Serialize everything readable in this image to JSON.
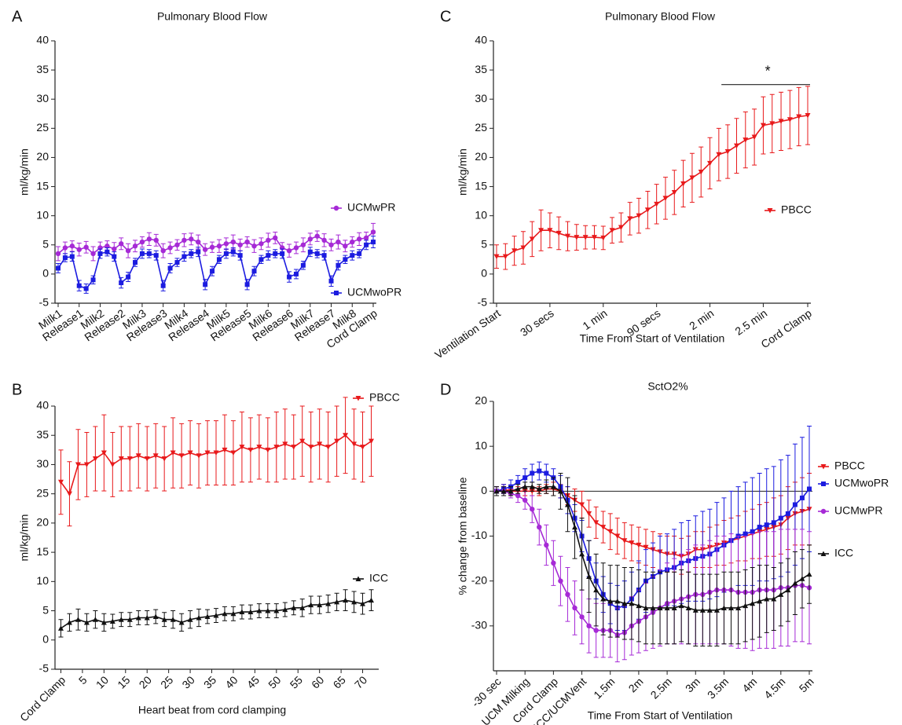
{
  "chart_data": [
    {
      "type": "line",
      "label": "A",
      "title": "Pulmonary Blood Flow",
      "ylabel": "ml/kg/min",
      "categories": [
        "Milk1",
        null,
        null,
        "Release1",
        null,
        null,
        "Milk2",
        null,
        null,
        "Release2",
        null,
        null,
        "Milk3",
        null,
        null,
        "Release3",
        null,
        null,
        "Milk4",
        null,
        null,
        "Release4",
        null,
        null,
        "Milk5",
        null,
        null,
        "Release5",
        null,
        null,
        "Milk6",
        null,
        null,
        "Release6",
        null,
        null,
        "Milk7",
        null,
        null,
        "Release7",
        null,
        null,
        "Milk8",
        null,
        null,
        "Cord Clamp"
      ],
      "ylim": [
        -5,
        40
      ],
      "yticks": [
        -5,
        0,
        5,
        10,
        15,
        20,
        25,
        30,
        35,
        40
      ],
      "series": [
        {
          "name": "UCMwPR",
          "color": "#a62ad6",
          "marker": "circle",
          "values": [
            3.5,
            4.5,
            4.8,
            4.2,
            4.6,
            3.5,
            4.5,
            4.8,
            4.3,
            5.2,
            4.0,
            4.8,
            5.5,
            6.0,
            5.8,
            4.0,
            4.5,
            5.0,
            5.8,
            6.0,
            5.5,
            4.2,
            4.6,
            4.8,
            5.2,
            5.5,
            5.0,
            5.5,
            4.8,
            5.2,
            5.8,
            6.2,
            4.5,
            4.0,
            4.5,
            5.0,
            6.0,
            6.5,
            5.8,
            5.0,
            5.5,
            4.8,
            5.5,
            6.0,
            6.2,
            7.2
          ],
          "errors": [
            1.2,
            1.0,
            0.9,
            1.1,
            1.0,
            1.2,
            1.0,
            0.9,
            1.1,
            1.0,
            1.2,
            1.0,
            0.9,
            1.1,
            1.0,
            1.2,
            1.0,
            0.9,
            1.1,
            1.0,
            1.2,
            1.0,
            0.9,
            1.1,
            1.0,
            1.2,
            1.0,
            0.9,
            1.1,
            1.0,
            1.2,
            1.0,
            0.9,
            1.1,
            1.0,
            1.2,
            1.0,
            0.9,
            1.1,
            1.0,
            1.2,
            1.0,
            0.9,
            1.1,
            1.0,
            1.5
          ]
        },
        {
          "name": "UCMwoPR",
          "color": "#1c1ce0",
          "marker": "square",
          "values": [
            1.0,
            2.8,
            3.0,
            -2.0,
            -2.5,
            -1.0,
            3.5,
            3.8,
            3.0,
            -1.5,
            -0.5,
            2.0,
            3.5,
            3.5,
            3.2,
            -2.0,
            1.0,
            2.0,
            3.0,
            3.5,
            3.8,
            -1.8,
            0.5,
            2.5,
            3.5,
            3.8,
            3.2,
            -1.8,
            0.5,
            2.5,
            3.2,
            3.5,
            3.5,
            -0.5,
            0,
            1.5,
            3.8,
            3.5,
            3.2,
            -1.2,
            1.5,
            2.5,
            3.2,
            3.5,
            5.0,
            5.5
          ],
          "errors": [
            0.8,
            0.7,
            0.8,
            0.9,
            0.8,
            0.7,
            0.8,
            0.7,
            0.8,
            0.9,
            0.8,
            0.7,
            0.8,
            0.7,
            0.8,
            0.9,
            0.8,
            0.7,
            0.8,
            0.7,
            0.8,
            0.9,
            0.8,
            0.7,
            0.8,
            0.7,
            0.8,
            0.9,
            0.8,
            0.7,
            0.8,
            0.7,
            0.8,
            0.9,
            0.8,
            0.7,
            0.8,
            0.7,
            0.8,
            0.9,
            0.8,
            0.7,
            0.8,
            0.7,
            0.8,
            1.0
          ]
        }
      ]
    },
    {
      "type": "line",
      "label": "B",
      "ylabel": "ml/kg/min",
      "xlabel": "Heart beat from cord clamping",
      "x": [
        0,
        2,
        4,
        6,
        8,
        10,
        12,
        14,
        16,
        18,
        20,
        22,
        24,
        26,
        28,
        30,
        32,
        34,
        36,
        38,
        40,
        42,
        44,
        46,
        48,
        50,
        52,
        54,
        56,
        58,
        60,
        62,
        64,
        66,
        68,
        70,
        72
      ],
      "xlim": [
        -1,
        73
      ],
      "xticks": [
        {
          "value": 0,
          "label": "Cord Clamp"
        },
        5,
        10,
        15,
        20,
        25,
        30,
        35,
        40,
        45,
        50,
        55,
        60,
        65,
        70
      ],
      "ylim": [
        -5,
        40
      ],
      "yticks": [
        -5,
        0,
        5,
        10,
        15,
        20,
        25,
        30,
        35,
        40
      ],
      "series": [
        {
          "name": "PBCC",
          "color": "#e8191b",
          "marker": "triangle-down",
          "values": [
            27,
            25,
            30,
            30,
            31,
            32,
            30,
            31,
            31,
            31.5,
            31,
            31.5,
            31,
            32,
            31.5,
            32,
            31.5,
            32,
            32,
            32.5,
            32,
            33,
            32.5,
            33,
            32.5,
            33,
            33.5,
            33,
            34,
            33,
            33.5,
            33,
            34,
            35,
            33.5,
            33,
            34
          ],
          "errors": [
            5.5,
            5.5,
            6,
            5.5,
            5.5,
            6.5,
            5.5,
            5.5,
            5.5,
            5.5,
            5.5,
            5.5,
            5.5,
            6,
            5.5,
            5.5,
            5.5,
            5.5,
            5.5,
            6,
            5.5,
            6,
            5.5,
            5.5,
            5.5,
            6,
            6,
            5.5,
            6,
            6,
            6,
            6,
            6,
            6.5,
            6,
            6,
            6
          ]
        },
        {
          "name": "ICC",
          "color": "#111111",
          "marker": "triangle-up",
          "values": [
            2,
            3,
            3.5,
            3,
            3.5,
            3,
            3.2,
            3.5,
            3.5,
            3.8,
            3.8,
            4,
            3.5,
            3.5,
            3,
            3.5,
            3.8,
            4,
            4.2,
            4.5,
            4.5,
            4.8,
            4.8,
            5,
            5,
            5,
            5.2,
            5.5,
            5.5,
            6,
            6,
            6.2,
            6.5,
            6.8,
            6.5,
            6.2,
            6.8
          ],
          "errors": [
            1.5,
            1.5,
            1.8,
            1.5,
            1.5,
            1.5,
            1.2,
            1.2,
            1.2,
            1.2,
            1.2,
            1.2,
            1.2,
            1.5,
            1.5,
            1.5,
            1.5,
            1.2,
            1.2,
            1.2,
            1.2,
            1.2,
            1.2,
            1.2,
            1.2,
            1.2,
            1.2,
            1.2,
            1.5,
            1.5,
            1.5,
            1.5,
            1.5,
            1.8,
            1.8,
            1.8,
            1.8
          ]
        }
      ]
    },
    {
      "type": "line",
      "label": "C",
      "title": "Pulmonary Blood Flow",
      "ylabel": "ml/kg/min",
      "xlabel": "Time From Start of Ventilation",
      "categories": [
        "Ventilation Start",
        null,
        null,
        null,
        null,
        null,
        "30 secs",
        null,
        null,
        null,
        null,
        null,
        "1 min",
        null,
        null,
        null,
        null,
        null,
        "90 secs",
        null,
        null,
        null,
        null,
        null,
        "2 min",
        null,
        null,
        null,
        null,
        null,
        "2.5 min",
        null,
        null,
        null,
        null,
        "Cord Clamp"
      ],
      "ylim": [
        -5,
        40
      ],
      "yticks": [
        -5,
        0,
        5,
        10,
        15,
        20,
        25,
        30,
        35,
        40
      ],
      "annotations": [
        {
          "text": "*",
          "x_from": 26,
          "x_to": 35,
          "y": 32.5
        }
      ],
      "series": [
        {
          "name": "PBCC",
          "color": "#e8191b",
          "marker": "triangle-down",
          "values": [
            3,
            3,
            4,
            4.5,
            6,
            7.5,
            7.5,
            7,
            6.5,
            6.3,
            6.3,
            6.3,
            6.2,
            7.5,
            8,
            9.5,
            10,
            11,
            12,
            13,
            14,
            15.5,
            16.5,
            17.5,
            19,
            20.5,
            21,
            22,
            23,
            23.5,
            25.5,
            25.8,
            26.2,
            26.5,
            27,
            27.2
          ],
          "errors": [
            2,
            2.2,
            2.5,
            2.8,
            3,
            3.5,
            3,
            2.8,
            2.5,
            2.2,
            2,
            2,
            2,
            2.2,
            2.5,
            2.8,
            3,
            3.2,
            3.4,
            3.6,
            3.8,
            4,
            4.2,
            4.3,
            4.4,
            4.5,
            4.6,
            4.7,
            4.8,
            4.8,
            4.9,
            5,
            5,
            5,
            5,
            5
          ]
        }
      ]
    },
    {
      "type": "line",
      "label": "D",
      "title": "SctO2%",
      "ylabel": "% change from baseline",
      "xlabel": "Time From Start of Ventilation",
      "categories": [
        "-30 sec",
        null,
        null,
        null,
        "UCM Milking",
        null,
        null,
        null,
        "Cord Clamp",
        null,
        null,
        null,
        "ICC/UCMVent",
        null,
        null,
        null,
        "1.5m",
        null,
        null,
        null,
        "2m",
        null,
        null,
        null,
        "2.5m",
        null,
        null,
        null,
        "3m",
        null,
        null,
        null,
        "3.5m",
        null,
        null,
        null,
        "4m",
        null,
        null,
        null,
        "4.5m",
        null,
        null,
        null,
        "5m"
      ],
      "ylim": [
        -40,
        20
      ],
      "yticks": [
        -30,
        -20,
        -10,
        0,
        10,
        20
      ],
      "zero_line": true,
      "series": [
        {
          "name": "PBCC",
          "color": "#e8191b",
          "marker": "triangle-down",
          "values": [
            0,
            0.5,
            0,
            0,
            0,
            0,
            0,
            0.5,
            0.5,
            0,
            -1,
            -2,
            -3,
            -5,
            -7,
            -8,
            -9,
            -10,
            -11,
            -11.5,
            -12,
            -12.5,
            -13,
            -13.5,
            -14,
            -14,
            -14.5,
            -14,
            -13,
            -13,
            -12.5,
            -12,
            -11.5,
            -11,
            -10.5,
            -10,
            -9.5,
            -9,
            -8.5,
            -8,
            -7.5,
            -6,
            -5,
            -4.5,
            -4
          ],
          "errors": [
            1,
            1,
            1,
            1,
            1,
            1,
            1,
            1,
            1.5,
            1.5,
            2,
            2.5,
            3,
            3,
            3.5,
            3.5,
            4,
            4,
            4,
            4,
            4,
            4,
            4,
            4,
            4,
            4,
            4,
            4,
            4,
            4,
            4.5,
            4.5,
            5,
            5,
            5,
            5.5,
            5.5,
            6,
            6,
            6.5,
            6.5,
            7,
            7,
            7.5,
            8
          ]
        },
        {
          "name": "UCMwoPR",
          "color": "#1c1ce0",
          "marker": "square",
          "values": [
            0,
            0.5,
            1,
            2,
            3,
            4,
            4.5,
            4,
            3,
            1,
            -2,
            -6,
            -10,
            -15,
            -20,
            -23,
            -25,
            -26,
            -25.5,
            -24,
            -22,
            -20,
            -19,
            -18,
            -17.5,
            -17,
            -16,
            -15.5,
            -15,
            -14.5,
            -14,
            -13,
            -12,
            -11,
            -10,
            -9.5,
            -9,
            -8,
            -7.5,
            -7,
            -6,
            -5,
            -3,
            -1.5,
            0.5
          ],
          "errors": [
            1,
            1,
            1.5,
            1.5,
            2,
            2,
            2,
            2,
            2,
            2.5,
            3,
            3,
            3.5,
            4,
            4,
            4,
            4.5,
            5,
            5.5,
            6,
            6.5,
            7,
            7.5,
            8,
            8,
            8.5,
            9,
            9,
            9.5,
            10,
            10,
            10.5,
            10.5,
            11,
            11,
            11.5,
            12,
            12,
            12.5,
            12.5,
            13,
            13,
            13.5,
            13.5,
            14
          ]
        },
        {
          "name": "UCMwPR",
          "color": "#a62ad6",
          "marker": "circle",
          "values": [
            0,
            0,
            -0.5,
            -1,
            -2,
            -4,
            -8,
            -12,
            -16,
            -20,
            -23,
            -26,
            -28,
            -30,
            -31,
            -31,
            -31,
            -32,
            -31.5,
            -30,
            -29,
            -28,
            -27,
            -26,
            -25,
            -24.5,
            -24,
            -23.5,
            -23,
            -23,
            -22.5,
            -22,
            -22,
            -22,
            -22.5,
            -22.5,
            -22.5,
            -22,
            -22,
            -22,
            -21.5,
            -21.5,
            -21,
            -21,
            -21.5
          ],
          "errors": [
            1,
            1,
            1,
            1.5,
            2,
            3,
            4,
            4.5,
            5,
            5.5,
            6,
            6,
            6,
            6,
            6,
            6,
            6,
            6,
            6,
            6.5,
            7,
            7.5,
            8,
            8.5,
            9,
            9.5,
            10,
            10.5,
            11,
            11,
            11.5,
            12,
            12,
            12.5,
            12.5,
            12.5,
            13,
            13,
            13,
            13,
            13,
            13,
            12.5,
            12.5,
            12.5
          ]
        },
        {
          "name": "ICC",
          "color": "#111111",
          "marker": "triangle-up",
          "values": [
            0,
            0,
            0,
            0.5,
            1,
            1,
            0.5,
            1,
            1,
            0,
            -3,
            -8,
            -14,
            -19,
            -22,
            -24,
            -24.5,
            -24.5,
            -25,
            -25,
            -25.5,
            -26,
            -26,
            -26,
            -26,
            -26,
            -25.5,
            -26,
            -26.5,
            -26.5,
            -26.5,
            -26.5,
            -26,
            -26,
            -26,
            -25.5,
            -25,
            -24.5,
            -24,
            -24,
            -23,
            -22,
            -20.5,
            -19.5,
            -18.5
          ],
          "errors": [
            1,
            1,
            1,
            1,
            1,
            1,
            1,
            1.5,
            2,
            4,
            6,
            7,
            8,
            8,
            8,
            8,
            8,
            8,
            8,
            8,
            8,
            8,
            8,
            8,
            8,
            8,
            8,
            8,
            8,
            8,
            8,
            8,
            8,
            8,
            8,
            8,
            8,
            8,
            7.5,
            7,
            7,
            7,
            7,
            6.5,
            6.5
          ]
        }
      ]
    }
  ]
}
